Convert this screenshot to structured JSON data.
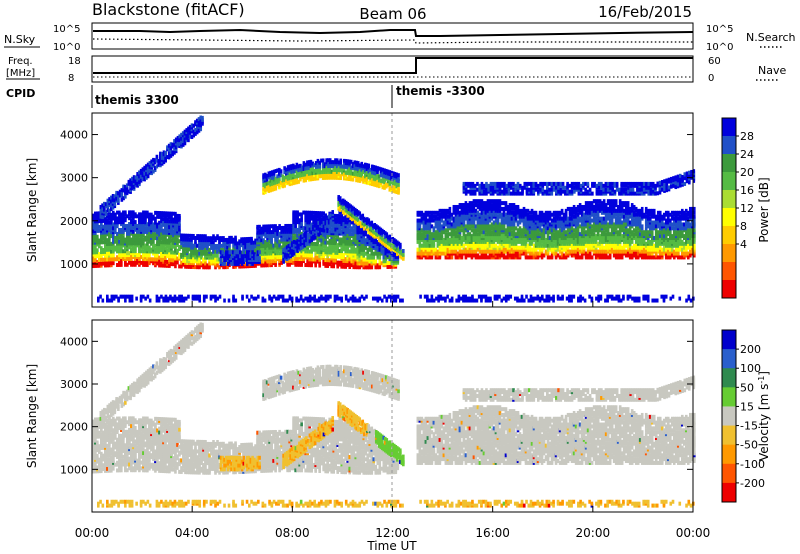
{
  "header": {
    "station": "Blackstone (fitACF)",
    "beam": "Beam 06",
    "date": "16/Feb/2015"
  },
  "status_panels": {
    "nsky_label": "N.Sky",
    "nsky_ticks": [
      "10^5",
      "10^0"
    ],
    "nsearch_label": "N.Search",
    "nsearch_ticks": [
      "10^5",
      "10^0"
    ],
    "freq_label": "Freq.",
    "freq_unit": "[MHz]",
    "freq_ticks": [
      "18",
      "8"
    ],
    "nave_label": "Nave",
    "nave_ticks": [
      "60",
      "0"
    ],
    "cpid_label": "CPID",
    "cpid_segments": [
      {
        "label": "themis 3300",
        "start_hour": 0,
        "end_hour": 12
      },
      {
        "label": "themis -3300",
        "start_hour": 12,
        "end_hour": 24
      }
    ]
  },
  "chart_data": [
    {
      "type": "heatmap",
      "name": "power",
      "ylabel": "Slant Range [km]",
      "ylim": [
        0,
        4500
      ],
      "yticks": [
        "1000",
        "2000",
        "3000",
        "4000"
      ],
      "xlim": [
        0,
        24
      ],
      "colorbar_label": "Power [dB]",
      "colorbar_ticks": [
        "28",
        "24",
        "20",
        "16",
        "12",
        "8",
        "4"
      ],
      "colorbar_colors": [
        "#0000dd",
        "#2050c8",
        "#3c9a3c",
        "#55bb44",
        "#aadd33",
        "#ffff00",
        "#ffcc00",
        "#ff9900",
        "#ff5500",
        "#ee0000"
      ]
    },
    {
      "type": "heatmap",
      "name": "velocity",
      "ylabel": "Slant Range [km]",
      "ylim": [
        0,
        4500
      ],
      "yticks": [
        "1000",
        "2000",
        "3000",
        "4000"
      ],
      "xlim": [
        0,
        24
      ],
      "xlabel": "Time UT",
      "xticks": [
        "00:00",
        "04:00",
        "08:00",
        "12:00",
        "16:00",
        "20:00",
        "00:00"
      ],
      "colorbar_label": "Velocity [m s",
      "colorbar_label_sup": "-1",
      "colorbar_label_end": "]",
      "colorbar_ticks": [
        "200",
        "100",
        "50",
        "15",
        "-15",
        "-50",
        "-100",
        "-200"
      ],
      "colorbar_colors": [
        "#0000cc",
        "#2a5fcc",
        "#2f8a4f",
        "#66cc33",
        "#c8c8c0",
        "#f0c030",
        "#ff9900",
        "#ff5500",
        "#ee0000"
      ]
    }
  ]
}
